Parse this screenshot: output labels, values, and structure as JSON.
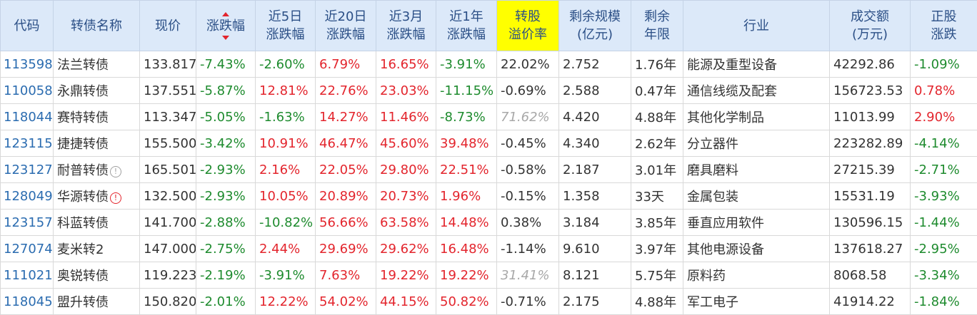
{
  "headers": {
    "code": "代码",
    "name": "转债名称",
    "price": "现价",
    "change": "涨跌幅",
    "chg5d_l1": "近5日",
    "chg5d_l2": "涨跌幅",
    "chg20d_l1": "近20日",
    "chg20d_l2": "涨跌幅",
    "chg3m_l1": "近3月",
    "chg3m_l2": "涨跌幅",
    "chg1y_l1": "近1年",
    "chg1y_l2": "涨跌幅",
    "premium_l1": "转股",
    "premium_l2": "溢价率",
    "scale_l1": "剩余规模",
    "scale_l2": "(亿元)",
    "years_l1": "剩余",
    "years_l2": "年限",
    "industry": "行业",
    "volume_l1": "成交额",
    "volume_l2": "(万元)",
    "stock_l1": "正股",
    "stock_l2": "涨跌"
  },
  "sort_indicator": "sort-arrows-icon",
  "colors": {
    "header_bg": "#dce9f9",
    "highlight": "#ffff00",
    "up": "#e3252d",
    "down": "#1e8b2e",
    "code": "#2b6cb0"
  },
  "rows": [
    {
      "code": "113598",
      "name": "法兰转债",
      "price": "133.817",
      "change": "-7.43%",
      "chg5d": "-2.60%",
      "chg20d": "6.79%",
      "chg3m": "16.65%",
      "chg1y": "-3.91%",
      "premium": "22.02%",
      "scale": "2.752",
      "years": "1.76年",
      "industry": "能源及重型设备",
      "volume": "42292.86",
      "stock": "-1.09%"
    },
    {
      "code": "110058",
      "name": "永鼎转债",
      "price": "137.551",
      "change": "-5.87%",
      "chg5d": "12.81%",
      "chg20d": "22.76%",
      "chg3m": "23.03%",
      "chg1y": "-11.15%",
      "premium": "-0.69%",
      "scale": "2.588",
      "years": "0.47年",
      "industry": "通信线缆及配套",
      "volume": "156723.53",
      "stock": "0.78%"
    },
    {
      "code": "118044",
      "name": "赛特转债",
      "price": "113.347",
      "change": "-5.05%",
      "chg5d": "-1.63%",
      "chg20d": "14.27%",
      "chg3m": "11.46%",
      "chg1y": "-8.73%",
      "premium": "71.62%",
      "scale": "4.420",
      "years": "4.88年",
      "industry": "其他化学制品",
      "volume": "11013.99",
      "stock": "2.90%"
    },
    {
      "code": "123115",
      "name": "捷捷转债",
      "price": "155.500",
      "change": "-3.42%",
      "chg5d": "10.91%",
      "chg20d": "46.47%",
      "chg3m": "45.60%",
      "chg1y": "39.48%",
      "premium": "-0.45%",
      "scale": "4.340",
      "years": "2.62年",
      "industry": "分立器件",
      "volume": "223282.89",
      "stock": "-4.14%"
    },
    {
      "code": "123127",
      "name": "耐普转债",
      "price": "165.501",
      "change": "-2.93%",
      "chg5d": "2.16%",
      "chg20d": "22.05%",
      "chg3m": "29.80%",
      "chg1y": "22.51%",
      "premium": "-0.58%",
      "scale": "2.187",
      "years": "3.01年",
      "industry": "磨具磨料",
      "volume": "27215.39",
      "stock": "-2.71%"
    },
    {
      "code": "128049",
      "name": "华源转债",
      "price": "132.500",
      "change": "-2.93%",
      "chg5d": "10.05%",
      "chg20d": "20.89%",
      "chg3m": "20.73%",
      "chg1y": "1.96%",
      "premium": "-0.15%",
      "scale": "1.358",
      "years": "33天",
      "industry": "金属包装",
      "volume": "15531.19",
      "stock": "-3.93%"
    },
    {
      "code": "123157",
      "name": "科蓝转债",
      "price": "141.700",
      "change": "-2.88%",
      "chg5d": "-10.82%",
      "chg20d": "56.66%",
      "chg3m": "63.58%",
      "chg1y": "14.48%",
      "premium": "0.38%",
      "scale": "3.184",
      "years": "3.85年",
      "industry": "垂直应用软件",
      "volume": "130596.15",
      "stock": "-1.44%"
    },
    {
      "code": "127074",
      "name": "麦米转2",
      "price": "147.000",
      "change": "-2.75%",
      "chg5d": "2.44%",
      "chg20d": "29.69%",
      "chg3m": "29.62%",
      "chg1y": "16.48%",
      "premium": "-1.14%",
      "scale": "9.610",
      "years": "3.97年",
      "industry": "其他电源设备",
      "volume": "137618.27",
      "stock": "-2.95%"
    },
    {
      "code": "111021",
      "name": "奥锐转债",
      "price": "119.223",
      "change": "-2.19%",
      "chg5d": "-3.91%",
      "chg20d": "7.63%",
      "chg3m": "19.22%",
      "chg1y": "19.22%",
      "premium": "31.41%",
      "scale": "8.121",
      "years": "5.75年",
      "industry": "原料药",
      "volume": "8068.58",
      "stock": "-3.34%"
    },
    {
      "code": "118045",
      "name": "盟升转债",
      "price": "150.820",
      "change": "-2.01%",
      "chg5d": "12.22%",
      "chg20d": "54.02%",
      "chg3m": "44.15%",
      "chg1y": "50.82%",
      "premium": "-0.71%",
      "scale": "2.175",
      "years": "4.88年",
      "industry": "军工电子",
      "volume": "41914.22",
      "stock": "-1.84%"
    }
  ]
}
